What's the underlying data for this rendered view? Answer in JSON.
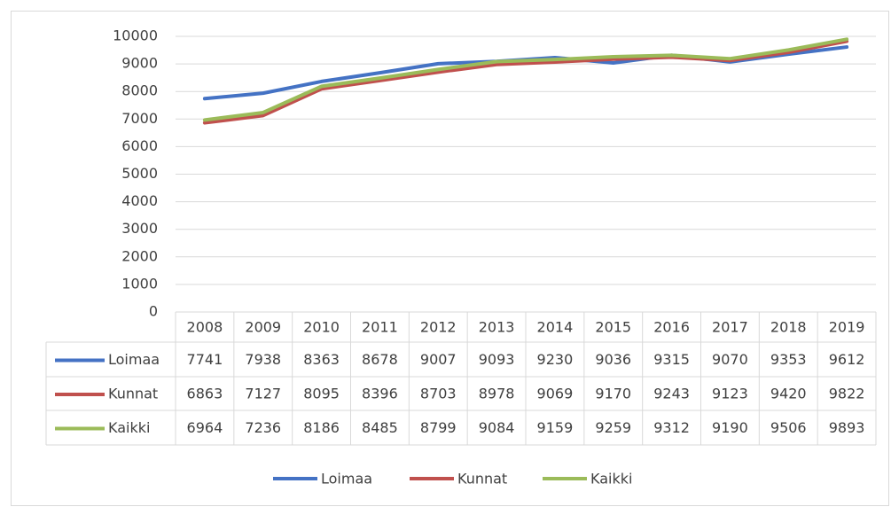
{
  "chart_data": {
    "type": "line",
    "categories": [
      "2008",
      "2009",
      "2010",
      "2011",
      "2012",
      "2013",
      "2014",
      "2015",
      "2016",
      "2017",
      "2018",
      "2019"
    ],
    "series": [
      {
        "name": "Loimaa",
        "color": "#4472c4",
        "values": [
          7741,
          7938,
          8363,
          8678,
          9007,
          9093,
          9230,
          9036,
          9315,
          9070,
          9353,
          9612
        ]
      },
      {
        "name": "Kunnat",
        "color": "#c0504d",
        "values": [
          6863,
          7127,
          8095,
          8396,
          8703,
          8978,
          9069,
          9170,
          9243,
          9123,
          9420,
          9822
        ]
      },
      {
        "name": "Kaikki",
        "color": "#9bbb59",
        "values": [
          6964,
          7236,
          8186,
          8485,
          8799,
          9084,
          9159,
          9259,
          9312,
          9190,
          9506,
          9893
        ]
      }
    ],
    "ylim": [
      0,
      10000
    ],
    "yticks": [
      0,
      1000,
      2000,
      3000,
      4000,
      5000,
      6000,
      7000,
      8000,
      9000,
      10000
    ],
    "grid": true,
    "legend": "bottom",
    "data_table": true
  }
}
